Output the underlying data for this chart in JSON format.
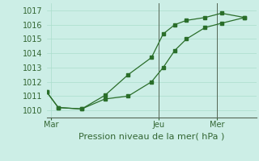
{
  "line1_x": [
    0,
    0.5,
    1.5,
    2.5,
    3.5,
    4.5,
    5.0,
    5.5,
    6.0,
    6.8,
    7.5,
    8.5
  ],
  "line1_y": [
    1011.3,
    1010.2,
    1010.1,
    1011.05,
    1012.5,
    1013.7,
    1015.35,
    1016.0,
    1016.3,
    1016.5,
    1016.8,
    1016.5
  ],
  "line2_x": [
    0,
    0.5,
    1.5,
    2.5,
    3.5,
    4.5,
    5.0,
    5.5,
    6.0,
    6.8,
    7.5,
    8.5
  ],
  "line2_y": [
    1011.3,
    1010.2,
    1010.1,
    1010.8,
    1011.0,
    1012.0,
    1013.0,
    1014.2,
    1015.0,
    1015.8,
    1016.1,
    1016.5
  ],
  "line_color": "#2a6e2a",
  "bg_color": "#cceee6",
  "grid_color": "#aaddcc",
  "ylim": [
    1009.5,
    1017.5
  ],
  "xlim": [
    0,
    9.0
  ],
  "yticks": [
    1010,
    1011,
    1012,
    1013,
    1014,
    1015,
    1016,
    1017
  ],
  "xlabel": "Pression niveau de la mer( hPa )",
  "xtick_labels": [
    "Mar",
    "Jeu",
    "Mer"
  ],
  "xtick_positions": [
    0.2,
    4.8,
    7.3
  ],
  "vlines_x": [
    4.8,
    7.3
  ],
  "xlabel_fontsize": 8,
  "tick_fontsize": 7
}
